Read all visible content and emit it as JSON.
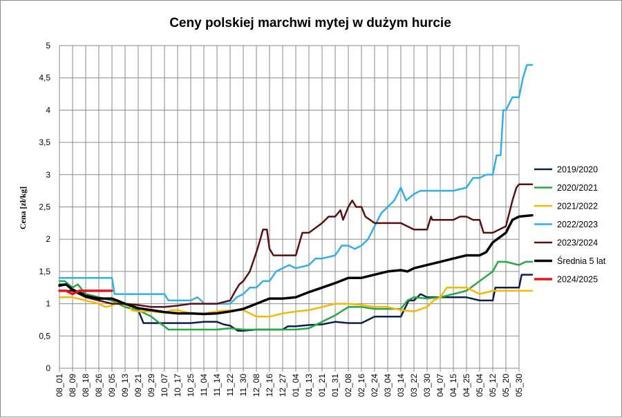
{
  "chart_data": {
    "type": "line",
    "title": "Ceny polskiej  marchwi mytej w dużym hurcie",
    "ylabel": "Cena [zł/kg]",
    "xlabel": "",
    "ylim": [
      0,
      5
    ],
    "grid": true,
    "legend_position": "right",
    "y_ticks": [
      "0",
      "0,5",
      "1",
      "1,5",
      "2",
      "2,5",
      "3",
      "3,5",
      "4",
      "4,5",
      "5"
    ],
    "x_ticks": [
      "08_01",
      "08_09",
      "08_18",
      "08_26",
      "09_05",
      "09_13",
      "09_21",
      "09_29",
      "10_07",
      "10_17",
      "10_25",
      "11_04",
      "11_14",
      "11_22",
      "11_30",
      "12_08",
      "12_16",
      "12_27",
      "01_04",
      "01_13",
      "01_21",
      "01_31",
      "02_08",
      "02_16",
      "02_24",
      "03_04",
      "03_14",
      "03_22",
      "03_30",
      "04_07",
      "04_15",
      "04_25",
      "05_04",
      "05_12",
      "05_20",
      "05_30"
    ],
    "series": [
      {
        "name": "2019/2020",
        "color": "#0b1f4f",
        "width": 2.5,
        "points": [
          [
            0,
            1.3
          ],
          [
            0.5,
            1.3
          ],
          [
            1,
            1.2
          ],
          [
            2,
            1.15
          ],
          [
            3,
            1.1
          ],
          [
            4,
            1.05
          ],
          [
            5,
            0.95
          ],
          [
            6,
            0.9
          ],
          [
            6.4,
            0.7
          ],
          [
            7,
            0.7
          ],
          [
            8,
            0.7
          ],
          [
            9,
            0.7
          ],
          [
            10,
            0.7
          ],
          [
            11,
            0.72
          ],
          [
            12,
            0.72
          ],
          [
            12.5,
            0.68
          ],
          [
            13,
            0.66
          ],
          [
            13.6,
            0.58
          ],
          [
            14,
            0.58
          ],
          [
            15,
            0.6
          ],
          [
            16,
            0.6
          ],
          [
            17,
            0.6
          ],
          [
            17.4,
            0.65
          ],
          [
            18,
            0.65
          ],
          [
            19,
            0.67
          ],
          [
            20,
            0.68
          ],
          [
            21,
            0.72
          ],
          [
            22,
            0.7
          ],
          [
            23,
            0.7
          ],
          [
            24,
            0.8
          ],
          [
            25,
            0.8
          ],
          [
            26,
            0.8
          ],
          [
            26.6,
            1.05
          ],
          [
            27,
            1.05
          ],
          [
            27.5,
            1.15
          ],
          [
            28,
            1.1
          ],
          [
            29,
            1.1
          ],
          [
            30,
            1.1
          ],
          [
            31,
            1.1
          ],
          [
            32,
            1.05
          ],
          [
            33,
            1.05
          ],
          [
            33.2,
            1.25
          ],
          [
            34,
            1.25
          ],
          [
            35,
            1.25
          ],
          [
            35.2,
            1.45
          ],
          [
            36,
            1.45
          ]
        ]
      },
      {
        "name": "2020/2021",
        "color": "#26a843",
        "width": 2.5,
        "points": [
          [
            0,
            1.35
          ],
          [
            0.4,
            1.35
          ],
          [
            0.7,
            1.3
          ],
          [
            1,
            1.25
          ],
          [
            1.4,
            1.3
          ],
          [
            1.8,
            1.2
          ],
          [
            2,
            1.15
          ],
          [
            3,
            1.1
          ],
          [
            4,
            1.05
          ],
          [
            5,
            0.95
          ],
          [
            6,
            0.9
          ],
          [
            7,
            0.8
          ],
          [
            7.5,
            0.72
          ],
          [
            8,
            0.65
          ],
          [
            8.3,
            0.6
          ],
          [
            9,
            0.6
          ],
          [
            10,
            0.6
          ],
          [
            11,
            0.6
          ],
          [
            12,
            0.6
          ],
          [
            13,
            0.62
          ],
          [
            14,
            0.6
          ],
          [
            15,
            0.6
          ],
          [
            16,
            0.6
          ],
          [
            17,
            0.6
          ],
          [
            18,
            0.6
          ],
          [
            19,
            0.62
          ],
          [
            20,
            0.72
          ],
          [
            21,
            0.82
          ],
          [
            22,
            0.95
          ],
          [
            23,
            0.95
          ],
          [
            24,
            0.92
          ],
          [
            25,
            0.92
          ],
          [
            26,
            0.92
          ],
          [
            26.5,
            1.05
          ],
          [
            27,
            1.1
          ],
          [
            28,
            1.08
          ],
          [
            29,
            1.1
          ],
          [
            30,
            1.15
          ],
          [
            31,
            1.2
          ],
          [
            32,
            1.35
          ],
          [
            33,
            1.5
          ],
          [
            33.4,
            1.65
          ],
          [
            34,
            1.65
          ],
          [
            35,
            1.6
          ],
          [
            35.5,
            1.65
          ],
          [
            36,
            1.65
          ]
        ]
      },
      {
        "name": "2021/2022",
        "color": "#f5b900",
        "width": 2.5,
        "points": [
          [
            0,
            1.1
          ],
          [
            1,
            1.1
          ],
          [
            2,
            1.05
          ],
          [
            3,
            1.0
          ],
          [
            3.5,
            0.95
          ],
          [
            4,
            0.97
          ],
          [
            4.5,
            1.05
          ],
          [
            5,
            0.97
          ],
          [
            5.3,
            1.0
          ],
          [
            5.5,
            0.9
          ],
          [
            6,
            0.88
          ],
          [
            7,
            0.88
          ],
          [
            8,
            0.86
          ],
          [
            8.5,
            0.9
          ],
          [
            9,
            0.9
          ],
          [
            10,
            0.85
          ],
          [
            11,
            0.85
          ],
          [
            12,
            0.88
          ],
          [
            13,
            0.9
          ],
          [
            14,
            0.9
          ],
          [
            15,
            0.8
          ],
          [
            16,
            0.8
          ],
          [
            17,
            0.85
          ],
          [
            18,
            0.88
          ],
          [
            19,
            0.9
          ],
          [
            20,
            0.95
          ],
          [
            21,
            1.0
          ],
          [
            22,
            1.0
          ],
          [
            23,
            0.98
          ],
          [
            24,
            0.95
          ],
          [
            25,
            0.95
          ],
          [
            26,
            0.9
          ],
          [
            27,
            0.88
          ],
          [
            28,
            0.95
          ],
          [
            28.5,
            1.05
          ],
          [
            29,
            1.1
          ],
          [
            29.5,
            1.25
          ],
          [
            30,
            1.25
          ],
          [
            31,
            1.25
          ],
          [
            32,
            1.15
          ],
          [
            33,
            1.2
          ],
          [
            34,
            1.2
          ],
          [
            35,
            1.2
          ],
          [
            36,
            1.2
          ]
        ]
      },
      {
        "name": "2022/2023",
        "color": "#2fb0e8",
        "width": 2.5,
        "points": [
          [
            0,
            1.4
          ],
          [
            1,
            1.4
          ],
          [
            2,
            1.4
          ],
          [
            3,
            1.4
          ],
          [
            4,
            1.4
          ],
          [
            4.2,
            1.15
          ],
          [
            5,
            1.15
          ],
          [
            6,
            1.15
          ],
          [
            7,
            1.15
          ],
          [
            8,
            1.15
          ],
          [
            8.3,
            1.05
          ],
          [
            9,
            1.05
          ],
          [
            10,
            1.05
          ],
          [
            10.5,
            1.1
          ],
          [
            10.8,
            1.05
          ],
          [
            11,
            1.0
          ],
          [
            12,
            1.0
          ],
          [
            13,
            1.0
          ],
          [
            13.5,
            1.1
          ],
          [
            14,
            1.15
          ],
          [
            14.5,
            1.25
          ],
          [
            15,
            1.25
          ],
          [
            15.5,
            1.35
          ],
          [
            16,
            1.35
          ],
          [
            16.5,
            1.5
          ],
          [
            17,
            1.55
          ],
          [
            17.5,
            1.6
          ],
          [
            18,
            1.55
          ],
          [
            19,
            1.6
          ],
          [
            19.5,
            1.7
          ],
          [
            20,
            1.7
          ],
          [
            21,
            1.75
          ],
          [
            21.5,
            1.9
          ],
          [
            22,
            1.9
          ],
          [
            22.5,
            1.85
          ],
          [
            23,
            1.9
          ],
          [
            23.5,
            2.0
          ],
          [
            24,
            2.2
          ],
          [
            24.5,
            2.4
          ],
          [
            25,
            2.5
          ],
          [
            25.5,
            2.6
          ],
          [
            26,
            2.8
          ],
          [
            26.4,
            2.6
          ],
          [
            27,
            2.7
          ],
          [
            27.5,
            2.75
          ],
          [
            28,
            2.75
          ],
          [
            29,
            2.75
          ],
          [
            30,
            2.75
          ],
          [
            31,
            2.8
          ],
          [
            31.5,
            2.95
          ],
          [
            32,
            2.95
          ],
          [
            32.5,
            3.0
          ],
          [
            33,
            3.0
          ],
          [
            33.3,
            3.3
          ],
          [
            33.6,
            3.3
          ],
          [
            33.8,
            4.0
          ],
          [
            34,
            4.0
          ],
          [
            34.5,
            4.2
          ],
          [
            35,
            4.2
          ],
          [
            35.3,
            4.5
          ],
          [
            35.6,
            4.7
          ],
          [
            36,
            4.7
          ]
        ]
      },
      {
        "name": "2023/2024",
        "color": "#5a0f0f",
        "width": 2.5,
        "points": [
          [
            0,
            1.2
          ],
          [
            1,
            1.2
          ],
          [
            2,
            1.1
          ],
          [
            3,
            1.05
          ],
          [
            4,
            1.0
          ],
          [
            5,
            1.0
          ],
          [
            6,
            0.98
          ],
          [
            7,
            0.95
          ],
          [
            8,
            0.95
          ],
          [
            9,
            0.97
          ],
          [
            10,
            1.0
          ],
          [
            11,
            1.0
          ],
          [
            12,
            1.0
          ],
          [
            13,
            1.05
          ],
          [
            13.4,
            1.2
          ],
          [
            13.7,
            1.3
          ],
          [
            14,
            1.35
          ],
          [
            14.5,
            1.5
          ],
          [
            15,
            1.8
          ],
          [
            15.3,
            2.0
          ],
          [
            15.5,
            2.15
          ],
          [
            15.8,
            2.15
          ],
          [
            16,
            1.85
          ],
          [
            16.3,
            1.75
          ],
          [
            17,
            1.75
          ],
          [
            18,
            1.75
          ],
          [
            18.5,
            2.1
          ],
          [
            19,
            2.1
          ],
          [
            20,
            2.25
          ],
          [
            20.5,
            2.35
          ],
          [
            21,
            2.35
          ],
          [
            21.4,
            2.45
          ],
          [
            21.6,
            2.3
          ],
          [
            22,
            2.5
          ],
          [
            22.3,
            2.6
          ],
          [
            22.6,
            2.5
          ],
          [
            23,
            2.5
          ],
          [
            23.3,
            2.35
          ],
          [
            24,
            2.25
          ],
          [
            25,
            2.25
          ],
          [
            26,
            2.25
          ],
          [
            27,
            2.15
          ],
          [
            28,
            2.15
          ],
          [
            28.3,
            2.35
          ],
          [
            28.4,
            2.3
          ],
          [
            29,
            2.3
          ],
          [
            30,
            2.3
          ],
          [
            30.5,
            2.35
          ],
          [
            31,
            2.35
          ],
          [
            31.5,
            2.3
          ],
          [
            32,
            2.3
          ],
          [
            32.3,
            2.1
          ],
          [
            33,
            2.1
          ],
          [
            34,
            2.2
          ],
          [
            34.5,
            2.6
          ],
          [
            34.8,
            2.8
          ],
          [
            35,
            2.85
          ],
          [
            36,
            2.85
          ]
        ]
      },
      {
        "name": "Średnia 5 lat",
        "color": "#000000",
        "width": 3.5,
        "points": [
          [
            0,
            1.28
          ],
          [
            0.5,
            1.3
          ],
          [
            1,
            1.22
          ],
          [
            2,
            1.12
          ],
          [
            3,
            1.08
          ],
          [
            4,
            1.08
          ],
          [
            5,
            1.0
          ],
          [
            6,
            0.93
          ],
          [
            7,
            0.9
          ],
          [
            8,
            0.87
          ],
          [
            9,
            0.85
          ],
          [
            10,
            0.85
          ],
          [
            11,
            0.84
          ],
          [
            12,
            0.85
          ],
          [
            13,
            0.88
          ],
          [
            14,
            0.92
          ],
          [
            15,
            1.0
          ],
          [
            16,
            1.08
          ],
          [
            17,
            1.08
          ],
          [
            18,
            1.1
          ],
          [
            19,
            1.18
          ],
          [
            20,
            1.25
          ],
          [
            21,
            1.32
          ],
          [
            22,
            1.4
          ],
          [
            23,
            1.4
          ],
          [
            24,
            1.45
          ],
          [
            25,
            1.5
          ],
          [
            26,
            1.52
          ],
          [
            26.5,
            1.5
          ],
          [
            27,
            1.55
          ],
          [
            28,
            1.6
          ],
          [
            29,
            1.65
          ],
          [
            30,
            1.7
          ],
          [
            31,
            1.75
          ],
          [
            32,
            1.75
          ],
          [
            32.5,
            1.8
          ],
          [
            33,
            1.95
          ],
          [
            34,
            2.1
          ],
          [
            34.5,
            2.3
          ],
          [
            35,
            2.35
          ],
          [
            36,
            2.37
          ]
        ]
      },
      {
        "name": "2024/2025",
        "color": "#e8141b",
        "width": 3.5,
        "points": [
          [
            0,
            1.2
          ],
          [
            0.5,
            1.2
          ],
          [
            1,
            1.15
          ],
          [
            1.5,
            1.2
          ],
          [
            2,
            1.2
          ],
          [
            3,
            1.2
          ],
          [
            4,
            1.2
          ]
        ]
      }
    ]
  }
}
